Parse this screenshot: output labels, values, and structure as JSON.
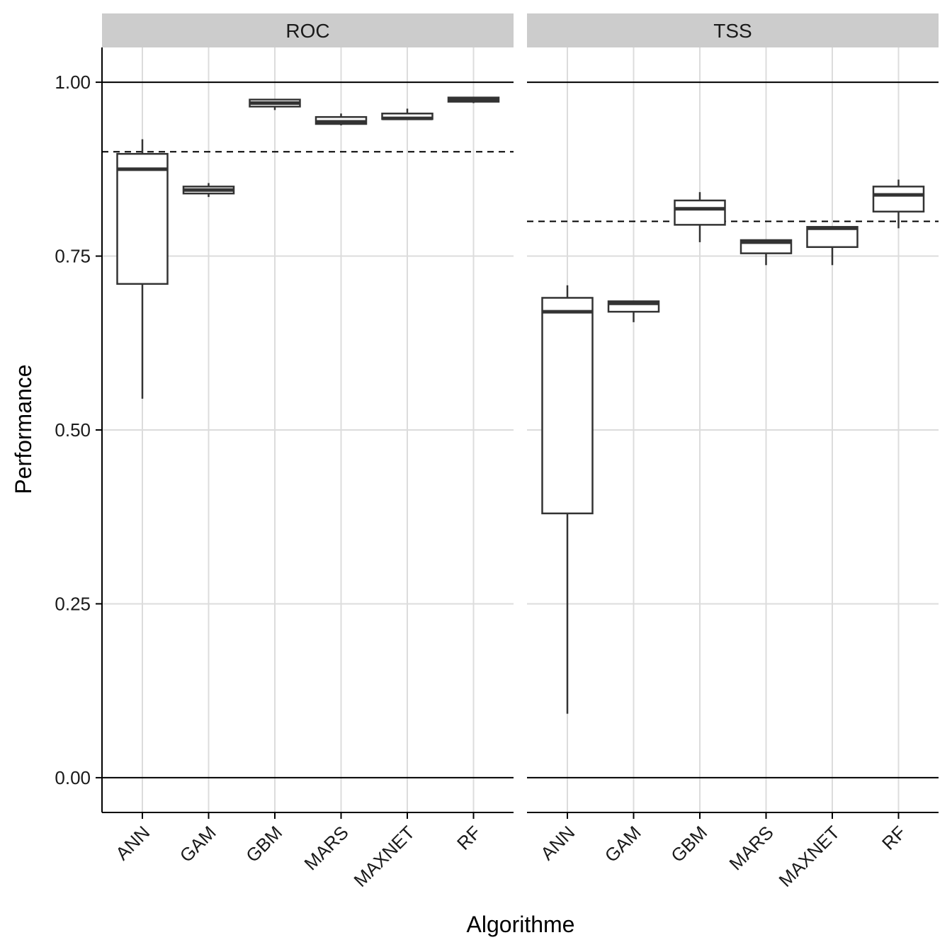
{
  "chart_data": {
    "type": "boxplot",
    "xlabel": "Algorithme",
    "ylabel": "Performance",
    "ylim": [
      -0.05,
      1.05
    ],
    "yticks": [
      0.0,
      0.25,
      0.5,
      0.75,
      1.0
    ],
    "ytick_labels": [
      "0.00",
      "0.25",
      "0.50",
      "0.75",
      "1.00"
    ],
    "categories": [
      "ANN",
      "GAM",
      "GBM",
      "MARS",
      "MAXNET",
      "RF"
    ],
    "reference_lines": [
      0,
      1
    ],
    "legend": "none",
    "grid": true,
    "facets": [
      {
        "label": "ROC",
        "threshold": 0.9,
        "boxes": [
          {
            "category": "ANN",
            "min": 0.545,
            "q1": 0.71,
            "median": 0.875,
            "q3": 0.897,
            "max": 0.918
          },
          {
            "category": "GAM",
            "min": 0.835,
            "q1": 0.84,
            "median": 0.845,
            "q3": 0.85,
            "max": 0.855
          },
          {
            "category": "GBM",
            "min": 0.96,
            "q1": 0.965,
            "median": 0.97,
            "q3": 0.975,
            "max": 0.975
          },
          {
            "category": "MARS",
            "min": 0.938,
            "q1": 0.94,
            "median": 0.943,
            "q3": 0.95,
            "max": 0.955
          },
          {
            "category": "MAXNET",
            "min": 0.946,
            "q1": 0.947,
            "median": 0.948,
            "q3": 0.955,
            "max": 0.962
          },
          {
            "category": "RF",
            "min": 0.97,
            "q1": 0.972,
            "median": 0.975,
            "q3": 0.978,
            "max": 0.978
          }
        ]
      },
      {
        "label": "TSS",
        "threshold": 0.8,
        "boxes": [
          {
            "category": "ANN",
            "min": 0.092,
            "q1": 0.38,
            "median": 0.67,
            "q3": 0.69,
            "max": 0.708
          },
          {
            "category": "GAM",
            "min": 0.655,
            "q1": 0.67,
            "median": 0.682,
            "q3": 0.685,
            "max": 0.685
          },
          {
            "category": "GBM",
            "min": 0.77,
            "q1": 0.795,
            "median": 0.818,
            "q3": 0.83,
            "max": 0.842
          },
          {
            "category": "MARS",
            "min": 0.737,
            "q1": 0.754,
            "median": 0.77,
            "q3": 0.773,
            "max": 0.773
          },
          {
            "category": "MAXNET",
            "min": 0.737,
            "q1": 0.763,
            "median": 0.79,
            "q3": 0.792,
            "max": 0.792
          },
          {
            "category": "RF",
            "min": 0.79,
            "q1": 0.814,
            "median": 0.838,
            "q3": 0.85,
            "max": 0.86
          }
        ]
      }
    ]
  }
}
